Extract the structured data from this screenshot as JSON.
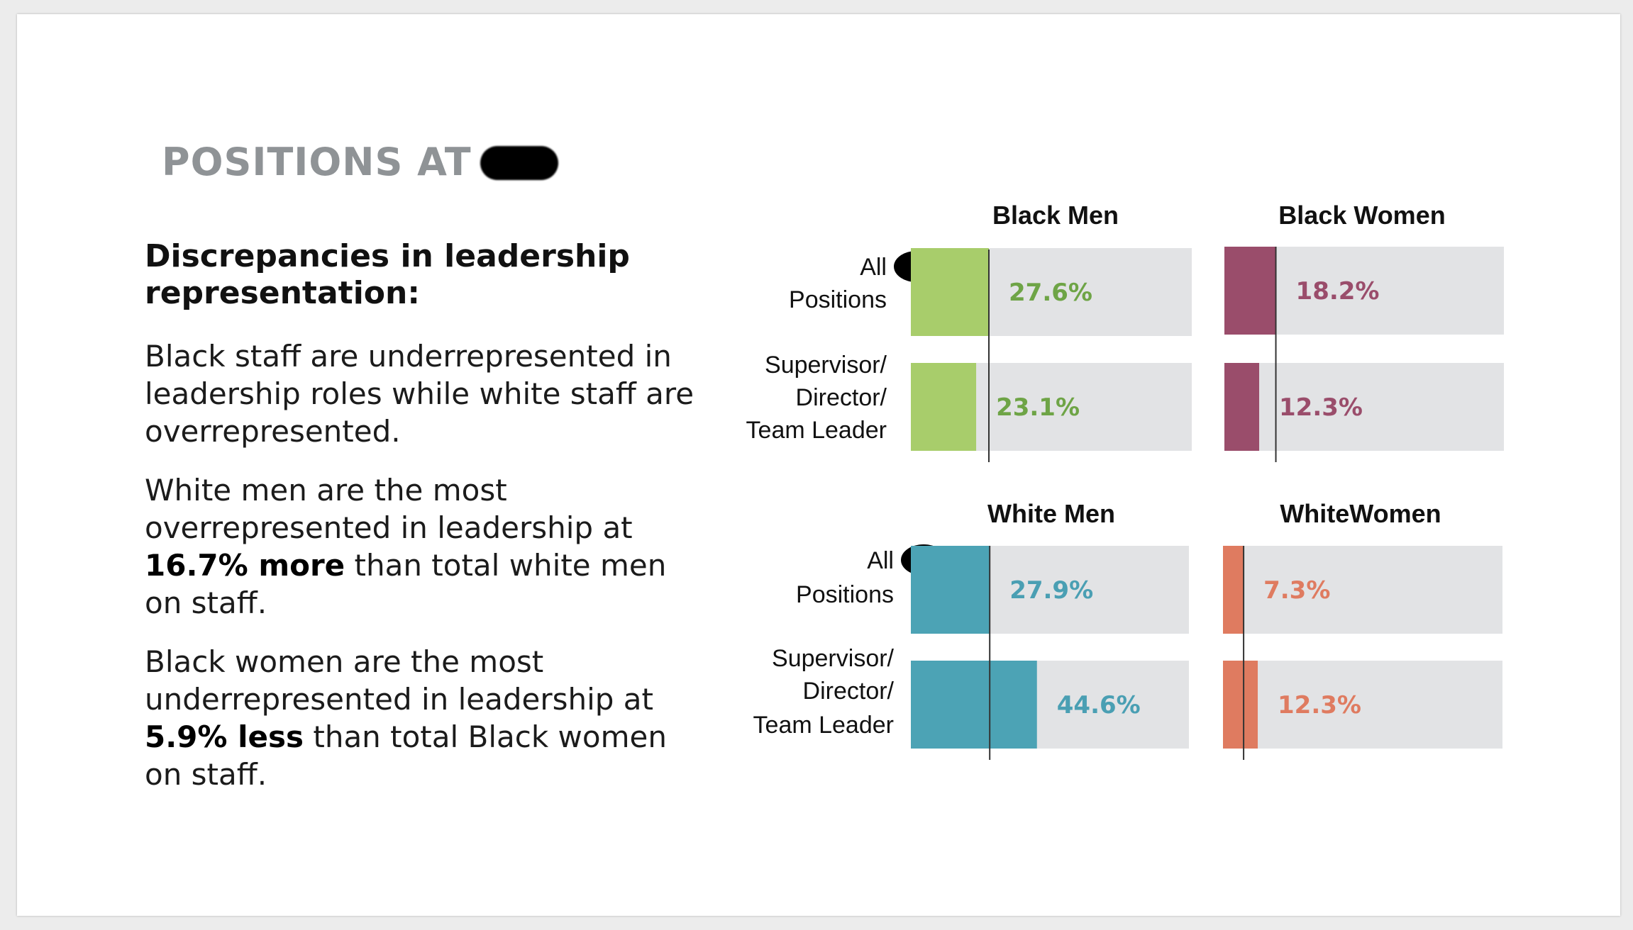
{
  "slide": {
    "title": "POSITIONS AT",
    "heading": "Discrepancies in leadership representation:",
    "para1": "Black staff are underrepresented in leadership roles while white staff are overrepresented.",
    "para2": {
      "before": "White men are the most overrepresented in leadership at ",
      "bold": "16.7% more",
      "after": " than total white men on staff."
    },
    "para3": {
      "before": "Black women are the most underrepresented in leadership at ",
      "bold": "5.9% less",
      "after": " than total Black women on staff."
    }
  },
  "chart_data": {
    "type": "bar",
    "orientation": "horizontal",
    "row_labels": [
      [
        "All",
        "Positions"
      ],
      [
        "Supervisor/",
        "Director/",
        "Team Leader"
      ]
    ],
    "categories": [
      "All Positions",
      "Supervisor/ Director/ Team Leader"
    ],
    "panels": [
      {
        "title": "Black Men",
        "color": "#a8cd6b",
        "label_color": "#6ea446",
        "values": [
          27.6,
          23.1
        ],
        "labels": [
          "27.6%",
          "23.1%"
        ]
      },
      {
        "title": "Black Women",
        "color": "#9a4d6b",
        "label_color": "#9a4d6b",
        "values": [
          18.2,
          12.3
        ],
        "labels": [
          "18.2%",
          "12.3%"
        ]
      },
      {
        "title": "White Men",
        "color": "#4ca3b5",
        "label_color": "#4a9fb3",
        "values": [
          27.9,
          44.6
        ],
        "labels": [
          "27.9%",
          "44.6%"
        ]
      },
      {
        "title": "WhiteWomen",
        "color": "#df7b60",
        "label_color": "#df7b60",
        "values": [
          7.3,
          12.3
        ],
        "labels": [
          "7.3%",
          "12.3%"
        ]
      }
    ],
    "reference_line": "All Positions value",
    "track_color": "#e2e3e5",
    "xlim": [
      0,
      100
    ]
  }
}
